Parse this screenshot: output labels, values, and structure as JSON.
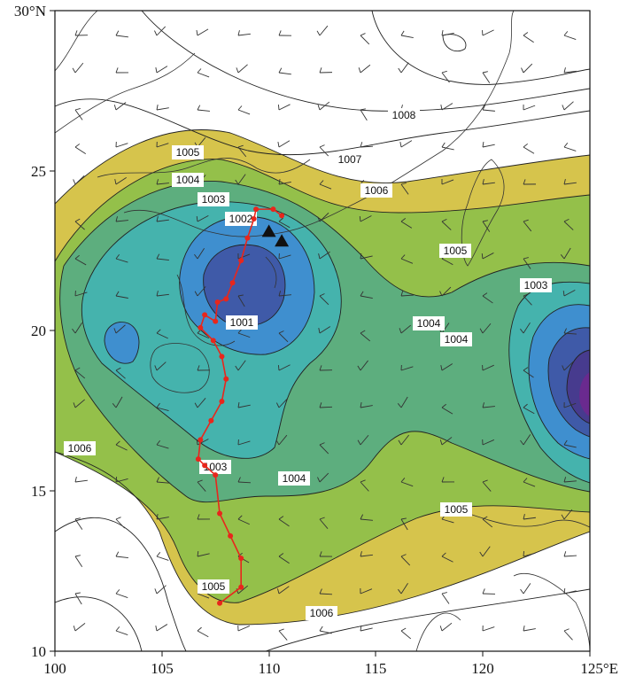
{
  "map": {
    "x_ticks": [
      "100",
      "105",
      "110",
      "115",
      "120",
      "125°E"
    ],
    "y_ticks": [
      "30°N",
      "25",
      "20",
      "15",
      "10"
    ],
    "pressure_labels": [
      {
        "text": "1008"
      },
      {
        "text": "1007"
      },
      {
        "text": "1006"
      },
      {
        "text": "1005"
      },
      {
        "text": "1004"
      },
      {
        "text": "1003"
      },
      {
        "text": "1002"
      },
      {
        "text": "1001"
      },
      {
        "text": "1005"
      },
      {
        "text": "1004"
      },
      {
        "text": "1004"
      },
      {
        "text": "1003"
      },
      {
        "text": "1006"
      },
      {
        "text": "1003"
      },
      {
        "text": "1004"
      },
      {
        "text": "1005"
      },
      {
        "text": "1005"
      },
      {
        "text": "1006"
      }
    ],
    "colors": {
      "p1006": "#d6c44c",
      "p1005": "#94c04a",
      "p1004": "#5dae7e",
      "p1003": "#45b3ad",
      "p1002": "#3f8fcf",
      "p1001": "#3f5aa8",
      "p1000": "#473b8e",
      "center": "#6a2a8f",
      "track": "#e8261c"
    },
    "track_points": [
      [
        107.7,
        11.5
      ],
      [
        108.7,
        12.0
      ],
      [
        108.7,
        12.9
      ],
      [
        108.2,
        13.6
      ],
      [
        107.7,
        14.3
      ],
      [
        107.5,
        15.5
      ],
      [
        107.0,
        15.8
      ],
      [
        106.7,
        16.0
      ],
      [
        106.8,
        16.6
      ],
      [
        107.3,
        17.2
      ],
      [
        107.8,
        17.8
      ],
      [
        108.0,
        18.5
      ],
      [
        107.8,
        19.2
      ],
      [
        107.4,
        19.7
      ],
      [
        106.8,
        20.1
      ],
      [
        107.0,
        20.5
      ],
      [
        107.5,
        20.3
      ],
      [
        107.6,
        20.9
      ],
      [
        108.0,
        21.0
      ],
      [
        108.3,
        21.5
      ],
      [
        108.7,
        22.2
      ],
      [
        109.0,
        22.9
      ],
      [
        109.3,
        23.5
      ],
      [
        109.4,
        23.8
      ],
      [
        110.2,
        23.8
      ],
      [
        110.6,
        23.6
      ]
    ],
    "triangles": [
      [
        110.0,
        23.1
      ],
      [
        110.6,
        22.8
      ]
    ]
  }
}
